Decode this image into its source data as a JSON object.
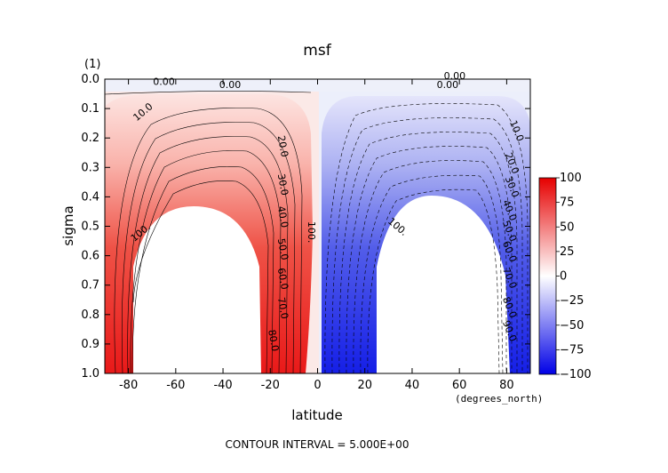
{
  "chart_data": {
    "type": "heatmap",
    "title": "msf",
    "xlabel": "latitude",
    "ylabel": "sigma",
    "x_units": "(degrees_north)",
    "y_units": "(1)",
    "xlim": [
      -90,
      90
    ],
    "ylim": [
      0.0,
      1.0
    ],
    "y_inverted": true,
    "xticks": [
      "-80",
      "-60",
      "-40",
      "-20",
      "0",
      "20",
      "40",
      "60",
      "80"
    ],
    "xtick_values": [
      -80,
      -60,
      -40,
      -20,
      0,
      20,
      40,
      60,
      80
    ],
    "yticks": [
      "0.0",
      "0.1",
      "0.2",
      "0.3",
      "0.4",
      "0.5",
      "0.6",
      "0.7",
      "0.8",
      "0.9",
      "1.0"
    ],
    "ytick_values": [
      0.0,
      0.1,
      0.2,
      0.3,
      0.4,
      0.5,
      0.6,
      0.7,
      0.8,
      0.9,
      1.0
    ],
    "colorbar": {
      "ticks": [
        "100",
        "75",
        "50",
        "25",
        "0",
        "−25",
        "−50",
        "−75",
        "−100"
      ],
      "tick_values": [
        100,
        75,
        50,
        25,
        0,
        -25,
        -50,
        -75,
        -100
      ],
      "range": [
        -100,
        100
      ],
      "positive_color": "#e60000",
      "negative_color": "#0000e6",
      "zero_color": "#ffffff"
    },
    "contour_interval_text": "CONTOUR INTERVAL = 5.000E+00",
    "cells": {
      "north_positive_cell": {
        "center_lat": -50,
        "peak_value": 100,
        "sign": "positive"
      },
      "south_negative_cell": {
        "center_lat": 50,
        "peak_value": -100,
        "sign": "negative"
      }
    },
    "contour_labels": [
      {
        "text": "0.00",
        "lat": -65,
        "sigma": 0.02
      },
      {
        "text": "0.00",
        "lat": -37,
        "sigma": 0.03
      },
      {
        "text": "0.00",
        "lat": 58,
        "sigma": 0.0
      },
      {
        "text": "0.00",
        "lat": 55,
        "sigma": 0.03
      },
      {
        "text": "10.0",
        "lat": -73,
        "sigma": 0.12
      },
      {
        "text": "20.0",
        "lat": -16,
        "sigma": 0.23
      },
      {
        "text": "30.0",
        "lat": -16,
        "sigma": 0.36
      },
      {
        "text": "40.0",
        "lat": -16,
        "sigma": 0.47
      },
      {
        "text": "50.0",
        "lat": -16,
        "sigma": 0.58
      },
      {
        "text": "60.0",
        "lat": -16,
        "sigma": 0.68
      },
      {
        "text": "70.0",
        "lat": -16,
        "sigma": 0.78
      },
      {
        "text": "80.0",
        "lat": -20,
        "sigma": 0.89
      },
      {
        "text": "100.",
        "lat": -74,
        "sigma": 0.53
      },
      {
        "text": "100.",
        "lat": -4,
        "sigma": 0.52
      },
      {
        "text": "100.",
        "lat": 33,
        "sigma": 0.51
      },
      {
        "text": "10.0",
        "lat": 83,
        "sigma": 0.18
      },
      {
        "text": "20.0",
        "lat": 81,
        "sigma": 0.29
      },
      {
        "text": "30.0",
        "lat": 81,
        "sigma": 0.37
      },
      {
        "text": "40.0",
        "lat": 80,
        "sigma": 0.45
      },
      {
        "text": "50.0",
        "lat": 80,
        "sigma": 0.52
      },
      {
        "text": "60.0",
        "lat": 80,
        "sigma": 0.59
      },
      {
        "text": "70.0",
        "lat": 80,
        "sigma": 0.68
      },
      {
        "text": "80.0",
        "lat": 80,
        "sigma": 0.78
      },
      {
        "text": "90.0",
        "lat": 80,
        "sigma": 0.86
      }
    ]
  }
}
